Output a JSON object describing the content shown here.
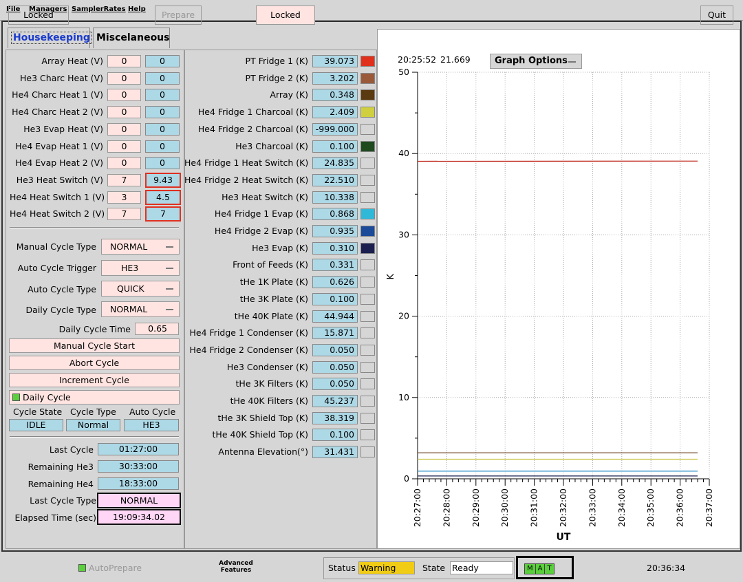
{
  "menu": {
    "file": "File",
    "managers": "Managers",
    "sampler": "SamplerRates",
    "help": "Help"
  },
  "tabs": {
    "housekeeping": "Housekeeping",
    "misc": "Miscelaneous"
  },
  "heaters": [
    {
      "label": "Array Heat (V)",
      "set": "0",
      "read": "0",
      "alert": false
    },
    {
      "label": "He3 Charc Heat (V)",
      "set": "0",
      "read": "0",
      "alert": false
    },
    {
      "label": "He4 Charc Heat 1 (V)",
      "set": "0",
      "read": "0",
      "alert": false
    },
    {
      "label": "He4 Charc Heat 2 (V)",
      "set": "0",
      "read": "0",
      "alert": false
    },
    {
      "label": "He3 Evap Heat (V)",
      "set": "0",
      "read": "0",
      "alert": false
    },
    {
      "label": "He4 Evap Heat 1 (V)",
      "set": "0",
      "read": "0",
      "alert": false
    },
    {
      "label": "He4 Evap Heat 2 (V)",
      "set": "0",
      "read": "0",
      "alert": false
    },
    {
      "label": "He3 Heat Switch (V)",
      "set": "7",
      "read": "9.43",
      "alert": true
    },
    {
      "label": "He4 Heat Switch 1 (V)",
      "set": "3",
      "read": "4.5",
      "alert": true
    },
    {
      "label": "He4 Heat Switch 2 (V)",
      "set": "7",
      "read": "7",
      "alert": true
    }
  ],
  "cycle": {
    "manual_type_label": "Manual Cycle Type",
    "manual_type": "NORMAL",
    "auto_trigger_label": "Auto Cycle Trigger",
    "auto_trigger": "HE3",
    "auto_type_label": "Auto Cycle Type",
    "auto_type": "QUICK",
    "daily_type_label": "Daily Cycle Type",
    "daily_type": "NORMAL",
    "daily_time_label": "Daily Cycle Time",
    "daily_time": "0.65",
    "manual_start": "Manual Cycle Start",
    "abort": "Abort Cycle",
    "increment": "Increment Cycle",
    "daily_cycle": "Daily Cycle",
    "state_hdr": "Cycle State",
    "type_hdr": "Cycle Type",
    "auto_hdr": "Auto Cycle",
    "state": "IDLE",
    "type": "Normal",
    "auto": "HE3",
    "last_cycle_label": "Last Cycle",
    "last_cycle": "01:27:00",
    "rem_he3_label": "Remaining He3",
    "rem_he3": "30:33:00",
    "rem_he4_label": "Remaining He4",
    "rem_he4": "18:33:00",
    "last_type_label": "Last Cycle Type",
    "last_type": "NORMAL",
    "elapsed_label": "Elapsed Time (sec)",
    "elapsed": "19:09:34.02"
  },
  "temps": [
    {
      "label": "PT Fridge 1 (K)",
      "value": "39.073",
      "color": "#e0301c"
    },
    {
      "label": "PT Fridge 2 (K)",
      "value": "3.202",
      "color": "#9a5a3a"
    },
    {
      "label": "Array (K)",
      "value": "0.348",
      "color": "#5a3a10"
    },
    {
      "label": "He4 Fridge 1 Charcoal (K)",
      "value": "2.409",
      "color": "#cfcf40"
    },
    {
      "label": "He4 Fridge 2 Charcoal (K)",
      "value": "-999.000",
      "color": ""
    },
    {
      "label": "He3 Charcoal (K)",
      "value": "0.100",
      "color": "#1e4a1e"
    },
    {
      "label": "He4 Fridge 1 Heat Switch (K)",
      "value": "24.835",
      "color": ""
    },
    {
      "label": "He4 Fridge 2 Heat Switch (K)",
      "value": "22.510",
      "color": ""
    },
    {
      "label": "He3 Heat Switch (K)",
      "value": "10.338",
      "color": ""
    },
    {
      "label": "He4 Fridge 1 Evap (K)",
      "value": "0.868",
      "color": "#30b8d8"
    },
    {
      "label": "He4 Fridge 2 Evap (K)",
      "value": "0.935",
      "color": "#1a4a98"
    },
    {
      "label": "He3 Evap (K)",
      "value": "0.310",
      "color": "#1a1f50"
    },
    {
      "label": "Front of Feeds (K)",
      "value": "0.331",
      "color": ""
    },
    {
      "label": "tHe 1K Plate (K)",
      "value": "0.626",
      "color": ""
    },
    {
      "label": "tHe 3K Plate (K)",
      "value": "0.100",
      "color": ""
    },
    {
      "label": "tHe 40K Plate (K)",
      "value": "44.944",
      "color": ""
    },
    {
      "label": "He4 Fridge 1 Condenser (K)",
      "value": "15.871",
      "color": ""
    },
    {
      "label": "He4 Fridge 2 Condenser (K)",
      "value": "0.050",
      "color": ""
    },
    {
      "label": "He3 Condenser (K)",
      "value": "0.050",
      "color": ""
    },
    {
      "label": "tHe 3K Filters (K)",
      "value": "0.050",
      "color": ""
    },
    {
      "label": "tHe 40K Filters (K)",
      "value": "45.237",
      "color": ""
    },
    {
      "label": "tHe 3K Shield Top (K)",
      "value": "38.319",
      "color": ""
    },
    {
      "label": "tHe 40K Shield Top (K)",
      "value": "0.100",
      "color": ""
    },
    {
      "label": "Antenna Elevation(°)",
      "value": "31.431",
      "color": ""
    }
  ],
  "graph": {
    "cursor_time": "20:25:52",
    "cursor_value": "21.669",
    "options_label": "Graph Options"
  },
  "chart_data": {
    "type": "line",
    "xlabel": "UT",
    "ylabel": "K",
    "ylim": [
      0,
      50
    ],
    "yticks": [
      "0",
      "10",
      "20",
      "30",
      "40",
      "50"
    ],
    "xticks": [
      "20:27:00",
      "20:28:00",
      "20:29:00",
      "20:30:00",
      "20:31:00",
      "20:32:00",
      "20:33:00",
      "20:34:00",
      "20:35:00",
      "20:36:00",
      "20:37:00"
    ],
    "xlim_min": [
      27,
      37
    ],
    "x_min": [
      27.0,
      36.6
    ],
    "grid": true,
    "series": [
      {
        "color": "#c0281c",
        "values": [
          39.05,
          39.07
        ]
      },
      {
        "color": "#6a3a18",
        "values": [
          3.2,
          3.2
        ]
      },
      {
        "color": "#c8c040",
        "values": [
          2.41,
          2.41
        ]
      },
      {
        "color": "#3090c8",
        "values": [
          0.94,
          0.94
        ]
      },
      {
        "color": "#1a2050",
        "values": [
          0.35,
          0.35
        ]
      }
    ]
  },
  "bottom": {
    "locked": "Locked",
    "autoprepare": "AutoPrepare",
    "prepare": "Prepare",
    "advanced": "Advanced Features",
    "adv_locked": "Locked",
    "status_label": "Status",
    "status": "Warning",
    "state_label": "State",
    "state": "Ready",
    "mat": [
      "M",
      "A",
      "T"
    ],
    "time": "20:36:34",
    "quit": "Quit"
  }
}
